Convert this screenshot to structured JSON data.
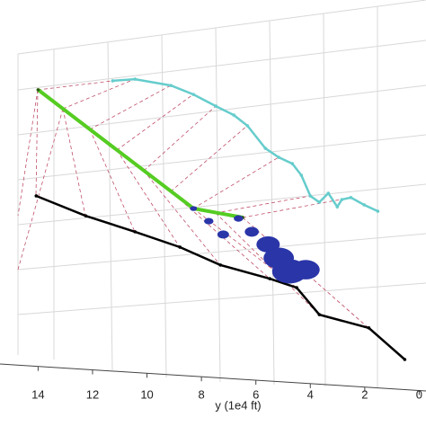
{
  "chart_data": {
    "type": "line3d",
    "x_label": "y (1e4 ft)",
    "xlim": [
      15.4,
      -0.25
    ],
    "xticks": [
      14,
      12,
      10,
      8,
      6,
      4,
      2,
      0
    ],
    "ylim": [
      0,
      100
    ],
    "series": [
      {
        "color": "#000000",
        "x": [
          14.07,
          12.25,
          10.44,
          8.79,
          7.3,
          5.49,
          4.5,
          3.67,
          1.85,
          0.53
        ],
        "values": [
          51.9,
          45.9,
          41.1,
          36.5,
          31.1,
          27.0,
          24.3,
          16.2,
          12.2,
          2.7
        ]
      },
      {
        "color": "#55cc22",
        "x": [
          14.0,
          8.29,
          6.48
        ],
        "values": [
          83.8,
          48.1,
          45.4
        ]
      },
      {
        "color": "#66cccc",
        "x": [
          11.26,
          10.44,
          9.12,
          8.29,
          7.47,
          6.81,
          6.31,
          5.65,
          5.16,
          4.66,
          4.33,
          4.0,
          3.67,
          3.34,
          3.01,
          2.84,
          2.51,
          2.02,
          1.52
        ],
        "values": [
          86.5,
          87.0,
          85.1,
          82.4,
          78.9,
          76.2,
          73.0,
          66.2,
          63.5,
          61.6,
          58.1,
          51.9,
          50.0,
          52.7,
          48.6,
          50.8,
          51.4,
          49.2,
          47.3
        ]
      }
    ],
    "bubbles": {
      "color": "#2a35a8",
      "x": [
        8.29,
        7.73,
        7.2,
        6.64,
        6.15,
        5.55,
        5.16,
        4.76,
        4.17
      ],
      "values": [
        48.1,
        44.3,
        40.3,
        45.1,
        41.1,
        37.3,
        33.2,
        29.2,
        29.7
      ],
      "sizes": [
        3,
        4,
        5,
        4,
        6,
        10,
        13,
        15,
        12
      ]
    }
  }
}
